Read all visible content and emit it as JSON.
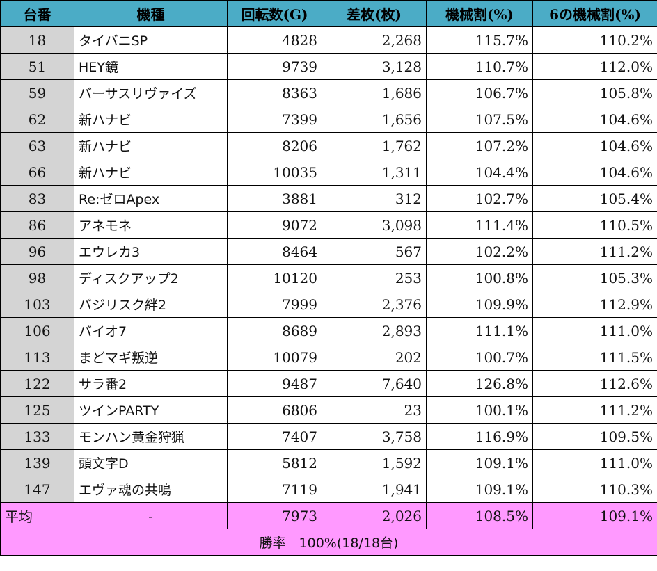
{
  "headers": [
    "台番",
    "機種",
    "回転数(G)",
    "差枚(枚)",
    "機械割(%)",
    "6の機械割(%)"
  ],
  "rows": [
    {
      "id": "18",
      "name": "タイバニSP",
      "spins": "4828",
      "diff": "2,268",
      "rate": "115.7%",
      "rate6": "110.2%"
    },
    {
      "id": "51",
      "name": "HEY鏡",
      "spins": "9739",
      "diff": "3,128",
      "rate": "110.7%",
      "rate6": "112.0%"
    },
    {
      "id": "59",
      "name": "バーサスリヴァイズ",
      "spins": "8363",
      "diff": "1,686",
      "rate": "106.7%",
      "rate6": "105.8%"
    },
    {
      "id": "62",
      "name": "新ハナビ",
      "spins": "7399",
      "diff": "1,656",
      "rate": "107.5%",
      "rate6": "104.6%"
    },
    {
      "id": "63",
      "name": "新ハナビ",
      "spins": "8206",
      "diff": "1,762",
      "rate": "107.2%",
      "rate6": "104.6%"
    },
    {
      "id": "66",
      "name": "新ハナビ",
      "spins": "10035",
      "diff": "1,311",
      "rate": "104.4%",
      "rate6": "104.6%"
    },
    {
      "id": "83",
      "name": "Re:ゼロApex",
      "spins": "3881",
      "diff": "312",
      "rate": "102.7%",
      "rate6": "105.4%"
    },
    {
      "id": "86",
      "name": "アネモネ",
      "spins": "9072",
      "diff": "3,098",
      "rate": "111.4%",
      "rate6": "110.5%"
    },
    {
      "id": "96",
      "name": "エウレカ3",
      "spins": "8464",
      "diff": "567",
      "rate": "102.2%",
      "rate6": "111.2%"
    },
    {
      "id": "98",
      "name": "ディスクアップ2",
      "spins": "10120",
      "diff": "253",
      "rate": "100.8%",
      "rate6": "105.3%"
    },
    {
      "id": "103",
      "name": "バジリスク絆2",
      "spins": "7999",
      "diff": "2,376",
      "rate": "109.9%",
      "rate6": "112.9%"
    },
    {
      "id": "106",
      "name": "バイオ7",
      "spins": "8689",
      "diff": "2,893",
      "rate": "111.1%",
      "rate6": "111.0%"
    },
    {
      "id": "113",
      "name": "まどマギ叛逆",
      "spins": "10079",
      "diff": "202",
      "rate": "100.7%",
      "rate6": "111.5%"
    },
    {
      "id": "122",
      "name": "サラ番2",
      "spins": "9487",
      "diff": "7,640",
      "rate": "126.8%",
      "rate6": "112.6%"
    },
    {
      "id": "125",
      "name": "ツインPARTY",
      "spins": "6806",
      "diff": "23",
      "rate": "100.1%",
      "rate6": "111.2%"
    },
    {
      "id": "133",
      "name": "モンハン黄金狩猟",
      "spins": "7407",
      "diff": "3,758",
      "rate": "116.9%",
      "rate6": "109.5%"
    },
    {
      "id": "139",
      "name": "頭文字D",
      "spins": "5812",
      "diff": "1,592",
      "rate": "109.1%",
      "rate6": "111.0%"
    },
    {
      "id": "147",
      "name": "エヴァ魂の共鳴",
      "spins": "7119",
      "diff": "1,941",
      "rate": "109.1%",
      "rate6": "110.3%"
    }
  ],
  "average": {
    "label": "平均",
    "name": "-",
    "spins": "7973",
    "diff": "2,026",
    "rate": "108.5%",
    "rate6": "109.1%"
  },
  "summary": "勝率　100%(18/18台)",
  "colors": {
    "header": "#4bacc6",
    "id_column": "#d4d4d4",
    "footer": "#ff99ff"
  }
}
